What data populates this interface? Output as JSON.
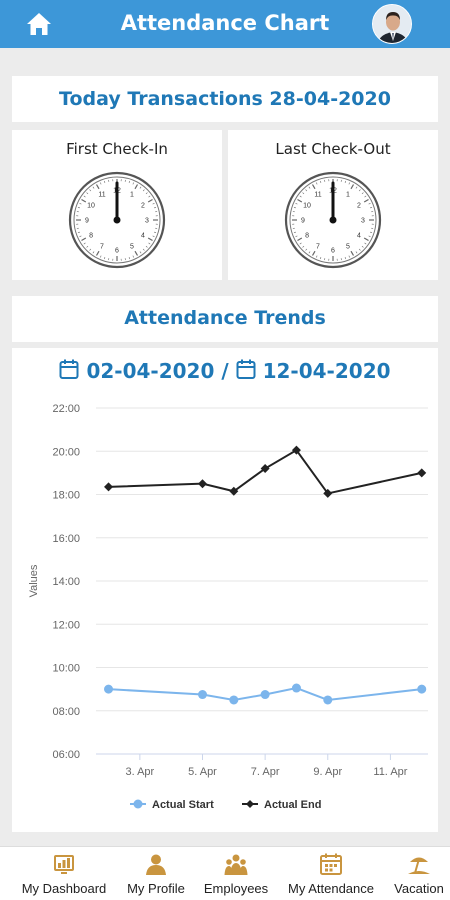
{
  "header": {
    "title": "Attendance Chart"
  },
  "today": {
    "label": "Today Transactions 28-04-2020"
  },
  "clocks": {
    "first_label": "First Check-In",
    "last_label": "Last Check-Out",
    "numbers": [
      "12",
      "1",
      "2",
      "3",
      "4",
      "5",
      "6",
      "7",
      "8",
      "9",
      "10",
      "11"
    ]
  },
  "trends": {
    "label": "Attendance Trends"
  },
  "range": {
    "from": "02-04-2020",
    "separator": "/",
    "to": "12-04-2020"
  },
  "chart_data": {
    "type": "line",
    "ylabel": "Values",
    "xlabel": "",
    "x": [
      2,
      5,
      6,
      7,
      8,
      9,
      12
    ],
    "x_tick_values": [
      3,
      5,
      7,
      9,
      11
    ],
    "x_tick_labels": [
      "3. Apr",
      "5. Apr",
      "7. Apr",
      "9. Apr",
      "11. Apr"
    ],
    "xlim": [
      1.6,
      12.2
    ],
    "ylim": [
      6,
      22
    ],
    "y_tick_values": [
      6,
      8,
      10,
      12,
      14,
      16,
      18,
      20,
      22
    ],
    "y_tick_labels": [
      "06:00",
      "08:00",
      "10:00",
      "12:00",
      "14:00",
      "16:00",
      "18:00",
      "20:00",
      "22:00"
    ],
    "grid": true,
    "legend_position": "bottom",
    "series": [
      {
        "name": "Actual Start",
        "color": "#7cb5ec",
        "marker": "circle",
        "x": [
          2,
          5,
          6,
          7,
          8,
          9,
          12
        ],
        "values": [
          9.0,
          8.75,
          8.5,
          8.75,
          9.05,
          8.5,
          9.0
        ]
      },
      {
        "name": "Actual End",
        "color": "#222222",
        "marker": "diamond",
        "x": [
          2,
          5,
          6,
          7,
          8,
          9,
          12
        ],
        "values": [
          18.35,
          18.5,
          18.15,
          19.2,
          20.05,
          18.05,
          19.0
        ]
      }
    ]
  },
  "nav": {
    "items": [
      {
        "label": "My Dashboard",
        "icon": "dashboard-icon"
      },
      {
        "label": "My Profile",
        "icon": "profile-icon"
      },
      {
        "label": "Employees",
        "icon": "employees-icon"
      },
      {
        "label": "My Attendance",
        "icon": "attendance-icon"
      },
      {
        "label": "Vacation",
        "icon": "vacation-icon"
      }
    ],
    "icon_color": "#c9953f"
  }
}
